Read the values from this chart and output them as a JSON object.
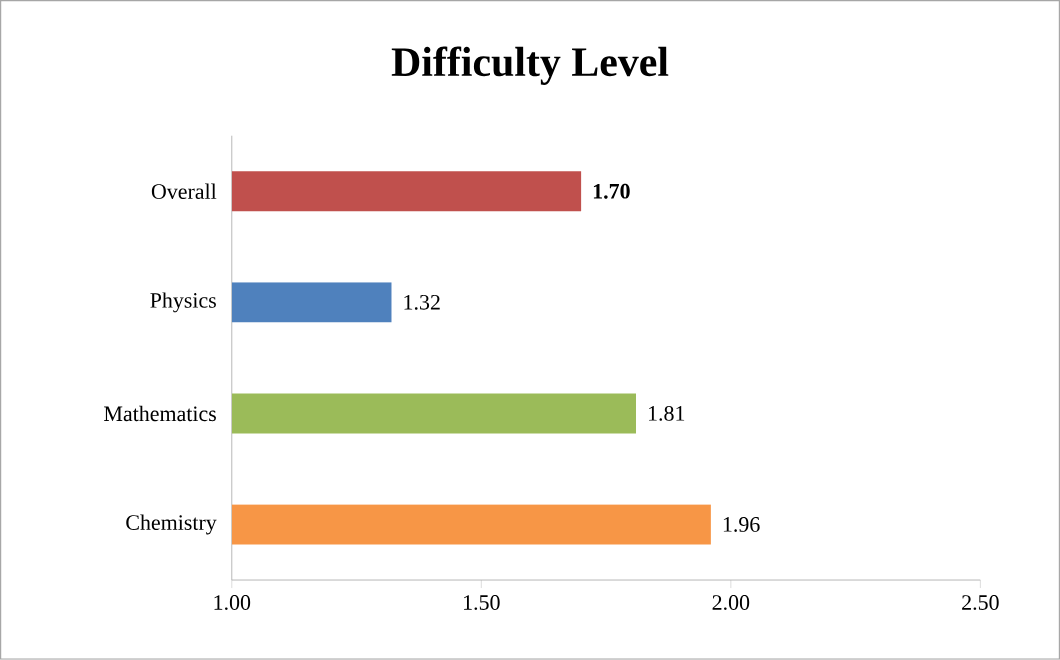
{
  "chart_data": {
    "type": "bar",
    "orientation": "horizontal",
    "title": "Difficulty Level",
    "categories": [
      "Overall",
      "Physics",
      "Mathematics",
      "Chemistry"
    ],
    "values": [
      1.7,
      1.32,
      1.81,
      1.96
    ],
    "colors": [
      "#c0504d",
      "#4f81bd",
      "#9bbb59",
      "#f79646"
    ],
    "value_labels": [
      "**1.70**",
      "1.32",
      "1.81",
      "1.96"
    ],
    "xlim": [
      1,
      2.5
    ],
    "xticks": [
      {
        "value": 1,
        "label": "1.00"
      },
      {
        "value": 1.5,
        "label": "1.50"
      },
      {
        "value": 2,
        "label": "2.00"
      },
      {
        "value": 2.5,
        "label": "2.50"
      }
    ],
    "grid": false
  }
}
